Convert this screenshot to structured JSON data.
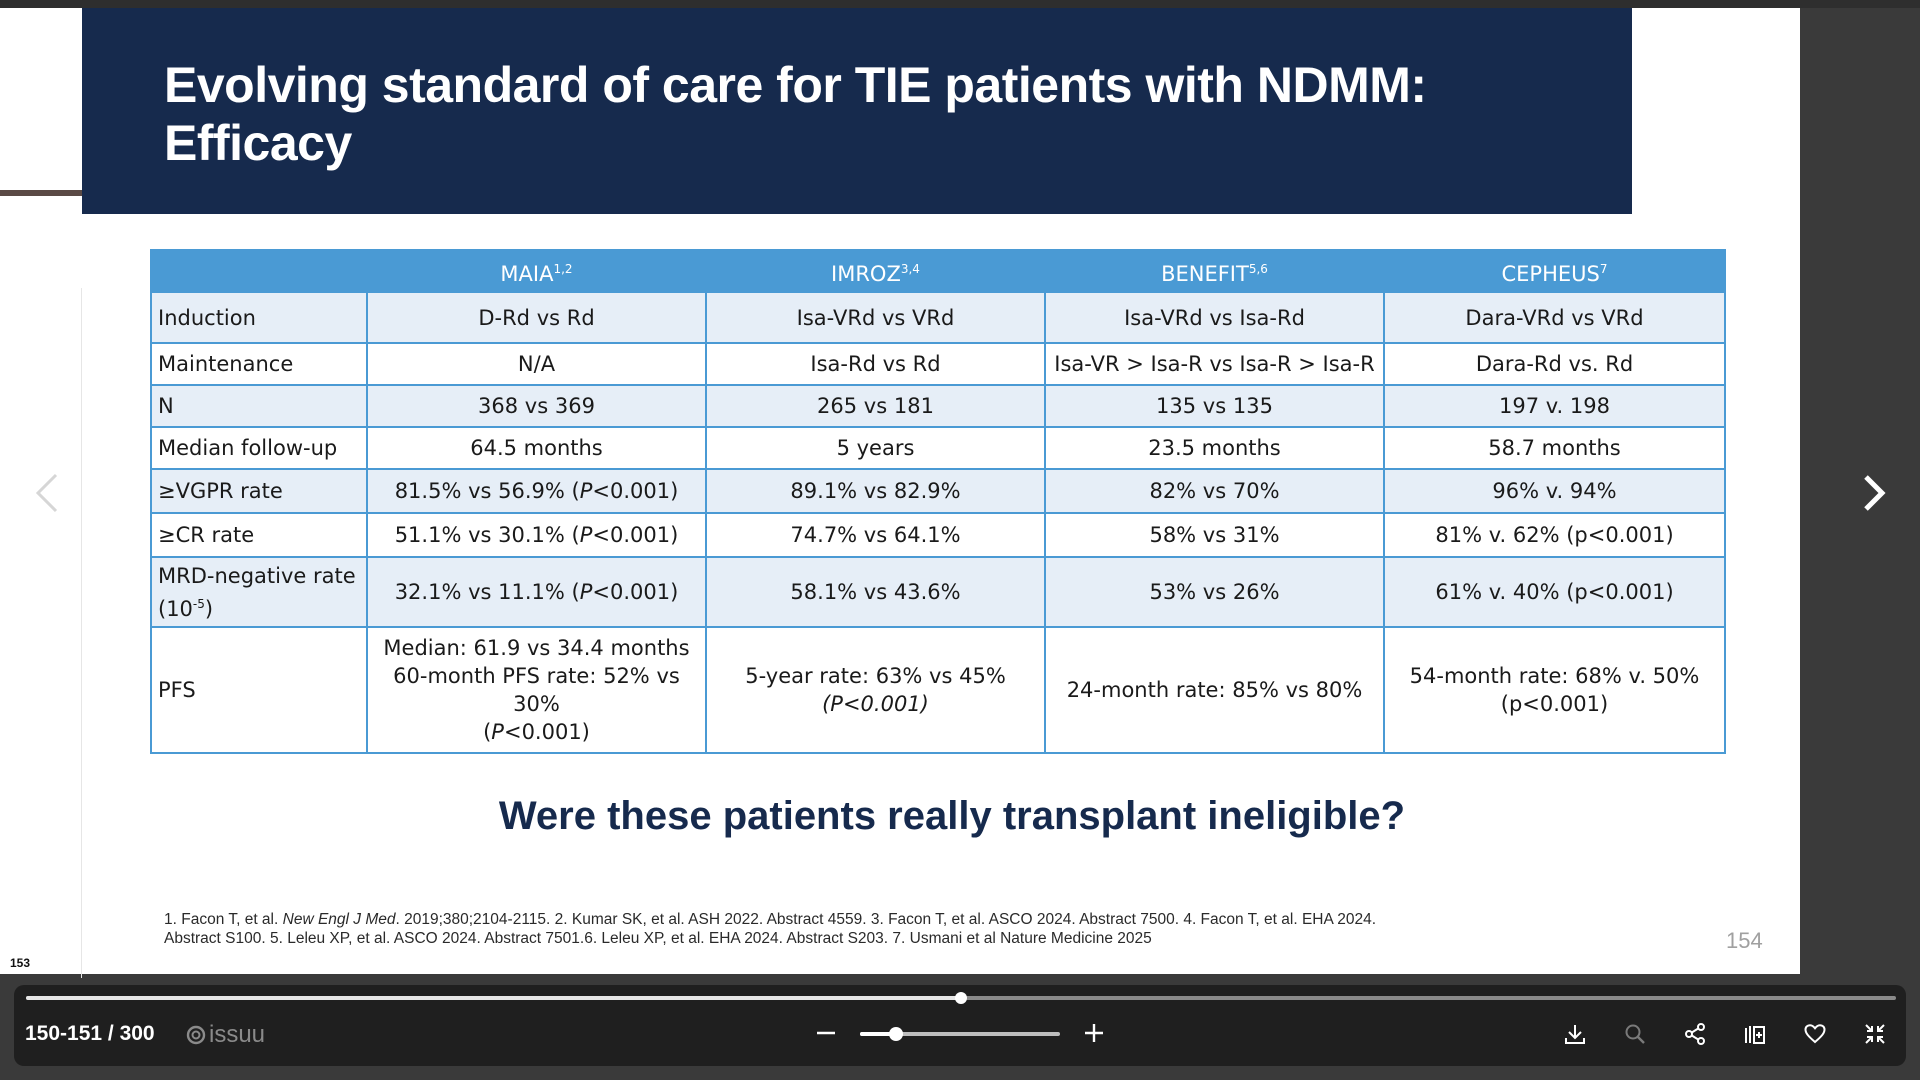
{
  "viewer": {
    "left_page_number": "153",
    "pages_label": "150-151 / 300",
    "brand": "issuu",
    "page_progress": 0.5,
    "zoom_level": 0.18
  },
  "slide": {
    "title_line1": "Evolving standard of care for TIE patients with NDMM:",
    "title_line2": "Efficacy",
    "table": {
      "headers": [
        {
          "name": "MAIA",
          "sup": "1,2"
        },
        {
          "name": "IMROZ",
          "sup": "3,4"
        },
        {
          "name": "BENEFIT",
          "sup": "5,6"
        },
        {
          "name": "CEPHEUS",
          "sup": "7"
        }
      ],
      "rows": {
        "induction": {
          "label": "Induction",
          "cells": [
            "D-Rd vs Rd",
            "Isa-VRd vs VRd",
            "Isa-VRd vs Isa-Rd",
            "Dara-VRd vs VRd"
          ]
        },
        "maintenance": {
          "label": "Maintenance",
          "cells": [
            "N/A",
            "Isa-Rd vs Rd",
            "Isa-VR > Isa-R vs Isa-R > Isa-R",
            "Dara-Rd vs. Rd"
          ]
        },
        "n": {
          "label": "N",
          "cells": [
            "368 vs 369",
            "265 vs 181",
            "135 vs 135",
            "197 v. 198"
          ]
        },
        "followup": {
          "label": "Median follow-up",
          "cells": [
            "64.5 months",
            "5 years",
            "23.5 months",
            "58.7 months"
          ]
        },
        "vgpr": {
          "label": "≥VGPR rate",
          "maia_pre": "81.5% vs 56.9% (",
          "maia_p": "P",
          "maia_post": "<0.001)",
          "cells": [
            "89.1% vs 82.9%",
            "82% vs 70%",
            "96% v. 94%"
          ]
        },
        "cr": {
          "label": "≥CR rate",
          "maia_pre": "51.1% vs 30.1% (",
          "maia_p": "P",
          "maia_post": "<0.001)",
          "cells": [
            "74.7% vs 64.1%",
            "58% vs 31%",
            "81% v. 62% (p<0.001)"
          ]
        },
        "mrd": {
          "label_line1": "MRD-negative rate",
          "label_line2_pre": "(10",
          "label_line2_sup": "-5",
          "label_line2_post": ")",
          "maia_pre": "32.1% vs 11.1% (",
          "maia_p": "P",
          "maia_post": "<0.001)",
          "cells": [
            "58.1% vs 43.6%",
            "53% vs 26%",
            "61% v. 40% (p<0.001)"
          ]
        },
        "pfs": {
          "label": "PFS",
          "maia_line1": "Median: 61.9 vs 34.4 months",
          "maia_line2": "60-month PFS rate: 52% vs 30%",
          "maia_line3_pre": "(",
          "maia_line3_p": "P",
          "maia_line3_post": "<0.001)",
          "imroz_line1": "5-year rate: 63% vs 45%",
          "imroz_line2": "(P<0.001)",
          "benefit": "24-month rate: 85% vs 80%",
          "cepheus_line1": "54-month rate: 68% v. 50%",
          "cepheus_line2": "(p<0.001)"
        }
      }
    },
    "question": "Were these patients really transplant ineligible?",
    "refs": {
      "r1_pre": "1. Facon T, et al. ",
      "r1_journal": "New Engl J Med",
      "r1_post": ". 2019;380;2104-2115. 2. Kumar SK, et al. ASH 2022. Abstract 4559. 3. Facon T, et al. ASCO 2024. Abstract 7500. 4. Facon T, et al. EHA 2024.",
      "line2": "Abstract S100. 5. Leleu XP, et al. ASCO 2024. Abstract 7501.6.  Leleu XP, et al. EHA 2024. Abstract S203. 7. Usmani et al Nature Medicine 2025"
    },
    "page_number": "154"
  },
  "icons": {
    "prev": "chevron-left-icon",
    "next": "chevron-right-icon",
    "download": "download-icon",
    "search": "search-icon",
    "share": "share-icon",
    "add_to_stack": "add-to-stack-icon",
    "like": "heart-icon",
    "exit_fullscreen": "exit-fullscreen-icon"
  },
  "colors": {
    "title_band": "#162a4d",
    "table_header": "#4a9ad4",
    "row_shade": "#e6eef7",
    "toolbar": "#1f1f1f"
  }
}
